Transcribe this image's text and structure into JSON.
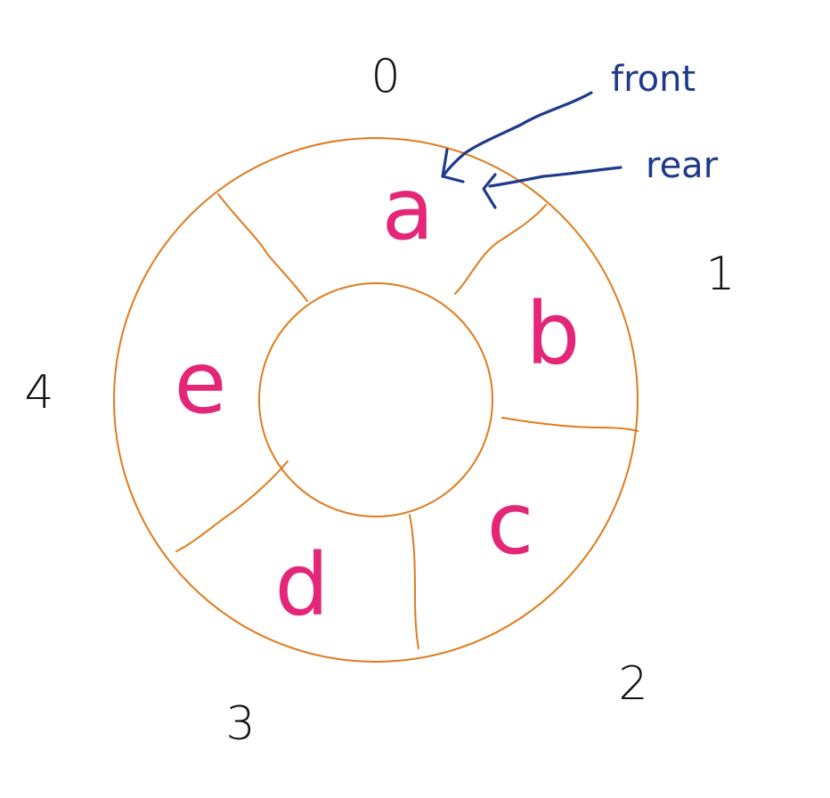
{
  "colors": {
    "ring": "#e07b1c",
    "element": "#e32677",
    "pointer": "#1f3a8a",
    "index": "#111111"
  },
  "slots": [
    {
      "index": "0",
      "element": "a"
    },
    {
      "index": "1",
      "element": "b"
    },
    {
      "index": "2",
      "element": "c"
    },
    {
      "index": "3",
      "element": "d"
    },
    {
      "index": "4",
      "element": "e"
    }
  ],
  "pointers": {
    "front": "front",
    "rear": "rear"
  }
}
